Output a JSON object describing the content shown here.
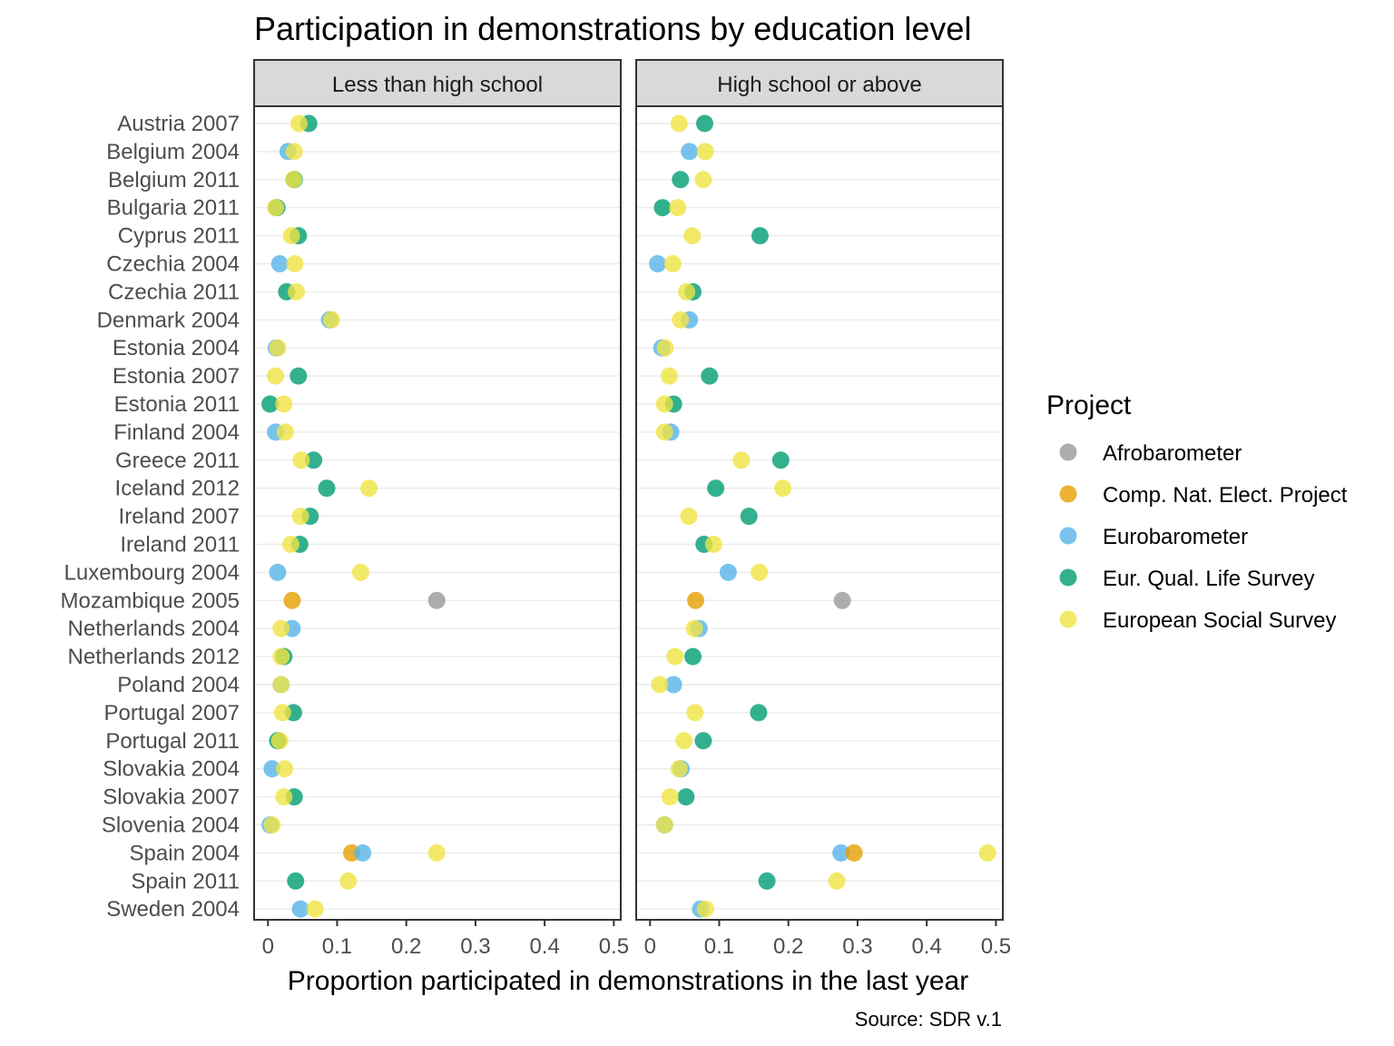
{
  "chart_data": {
    "type": "scatter",
    "title": "Participation in demonstrations by education level",
    "xlabel": "Proportion participated in demonstrations in the last year",
    "caption": "Source: SDR v.1",
    "xlim": [
      -0.02,
      0.51
    ],
    "x_ticks": [
      "0",
      "0.1",
      "0.2",
      "0.3",
      "0.4",
      "0.5"
    ],
    "x_tick_values": [
      0,
      0.1,
      0.2,
      0.3,
      0.4,
      0.5
    ],
    "grid": "horizontal",
    "legend_placement": "right",
    "legend": {
      "title": "Project",
      "entries": [
        {
          "key": "afro",
          "label": "Afrobarometer",
          "color": "#999999"
        },
        {
          "key": "cnep",
          "label": "Comp. Nat. Elect. Project",
          "color": "#E69F00"
        },
        {
          "key": "eb",
          "label": "Eurobarometer",
          "color": "#56B4E9"
        },
        {
          "key": "eqls",
          "label": "Eur. Qual. Life Survey",
          "color": "#009E73"
        },
        {
          "key": "ess",
          "label": "European Social Survey",
          "color": "#F0E442"
        }
      ]
    },
    "categories": [
      "Austria 2007",
      "Belgium 2004",
      "Belgium 2011",
      "Bulgaria 2011",
      "Cyprus 2011",
      "Czechia 2004",
      "Czechia 2011",
      "Denmark 2004",
      "Estonia 2004",
      "Estonia 2007",
      "Estonia 2011",
      "Finland 2004",
      "Greece 2011",
      "Iceland 2012",
      "Ireland 2007",
      "Ireland 2011",
      "Luxembourg 2004",
      "Mozambique 2005",
      "Netherlands 2004",
      "Netherlands 2012",
      "Poland 2004",
      "Portugal 2007",
      "Portugal 2011",
      "Slovakia 2004",
      "Slovakia 2007",
      "Slovenia 2004",
      "Spain 2004",
      "Spain 2011",
      "Sweden 2004"
    ],
    "panels": [
      {
        "label": "Less than high school",
        "points": [
          {
            "cat": "Austria 2007",
            "project": "eqls",
            "x": 0.059
          },
          {
            "cat": "Austria 2007",
            "project": "ess",
            "x": 0.045
          },
          {
            "cat": "Belgium 2004",
            "project": "eb",
            "x": 0.029
          },
          {
            "cat": "Belgium 2004",
            "project": "ess",
            "x": 0.038
          },
          {
            "cat": "Belgium 2011",
            "project": "eqls",
            "x": 0.038
          },
          {
            "cat": "Belgium 2011",
            "project": "ess",
            "x": 0.037
          },
          {
            "cat": "Bulgaria 2011",
            "project": "eqls",
            "x": 0.013
          },
          {
            "cat": "Bulgaria 2011",
            "project": "ess",
            "x": 0.011
          },
          {
            "cat": "Cyprus 2011",
            "project": "eqls",
            "x": 0.044
          },
          {
            "cat": "Cyprus 2011",
            "project": "ess",
            "x": 0.034
          },
          {
            "cat": "Czechia 2004",
            "project": "eb",
            "x": 0.017
          },
          {
            "cat": "Czechia 2004",
            "project": "ess",
            "x": 0.039
          },
          {
            "cat": "Czechia 2011",
            "project": "eqls",
            "x": 0.027
          },
          {
            "cat": "Czechia 2011",
            "project": "ess",
            "x": 0.041
          },
          {
            "cat": "Denmark 2004",
            "project": "eb",
            "x": 0.089
          },
          {
            "cat": "Denmark 2004",
            "project": "ess",
            "x": 0.092
          },
          {
            "cat": "Estonia 2004",
            "project": "eb",
            "x": 0.012
          },
          {
            "cat": "Estonia 2004",
            "project": "ess",
            "x": 0.014
          },
          {
            "cat": "Estonia 2007",
            "project": "eqls",
            "x": 0.044
          },
          {
            "cat": "Estonia 2007",
            "project": "ess",
            "x": 0.011
          },
          {
            "cat": "Estonia 2011",
            "project": "eqls",
            "x": 0.003
          },
          {
            "cat": "Estonia 2011",
            "project": "ess",
            "x": 0.023
          },
          {
            "cat": "Finland 2004",
            "project": "eb",
            "x": 0.011
          },
          {
            "cat": "Finland 2004",
            "project": "ess",
            "x": 0.025
          },
          {
            "cat": "Greece 2011",
            "project": "eqls",
            "x": 0.066
          },
          {
            "cat": "Greece 2011",
            "project": "ess",
            "x": 0.048
          },
          {
            "cat": "Iceland 2012",
            "project": "eqls",
            "x": 0.085
          },
          {
            "cat": "Iceland 2012",
            "project": "ess",
            "x": 0.146
          },
          {
            "cat": "Ireland 2007",
            "project": "eqls",
            "x": 0.061
          },
          {
            "cat": "Ireland 2007",
            "project": "ess",
            "x": 0.047
          },
          {
            "cat": "Ireland 2011",
            "project": "eqls",
            "x": 0.046
          },
          {
            "cat": "Ireland 2011",
            "project": "ess",
            "x": 0.033
          },
          {
            "cat": "Luxembourg 2004",
            "project": "eb",
            "x": 0.014
          },
          {
            "cat": "Luxembourg 2004",
            "project": "ess",
            "x": 0.134
          },
          {
            "cat": "Mozambique 2005",
            "project": "afro",
            "x": 0.244
          },
          {
            "cat": "Mozambique 2005",
            "project": "cnep",
            "x": 0.035
          },
          {
            "cat": "Netherlands 2004",
            "project": "eb",
            "x": 0.035
          },
          {
            "cat": "Netherlands 2004",
            "project": "ess",
            "x": 0.019
          },
          {
            "cat": "Netherlands 2012",
            "project": "eqls",
            "x": 0.023
          },
          {
            "cat": "Netherlands 2012",
            "project": "ess",
            "x": 0.019
          },
          {
            "cat": "Poland 2004",
            "project": "eb",
            "x": 0.019
          },
          {
            "cat": "Poland 2004",
            "project": "ess",
            "x": 0.019
          },
          {
            "cat": "Portugal 2007",
            "project": "eqls",
            "x": 0.037
          },
          {
            "cat": "Portugal 2007",
            "project": "ess",
            "x": 0.021
          },
          {
            "cat": "Portugal 2011",
            "project": "eqls",
            "x": 0.014
          },
          {
            "cat": "Portugal 2011",
            "project": "ess",
            "x": 0.017
          },
          {
            "cat": "Slovakia 2004",
            "project": "eb",
            "x": 0.006
          },
          {
            "cat": "Slovakia 2004",
            "project": "ess",
            "x": 0.024
          },
          {
            "cat": "Slovakia 2007",
            "project": "eqls",
            "x": 0.038
          },
          {
            "cat": "Slovakia 2007",
            "project": "ess",
            "x": 0.023
          },
          {
            "cat": "Slovenia 2004",
            "project": "eb",
            "x": 0.003
          },
          {
            "cat": "Slovenia 2004",
            "project": "ess",
            "x": 0.006
          },
          {
            "cat": "Spain 2004",
            "project": "cnep",
            "x": 0.121
          },
          {
            "cat": "Spain 2004",
            "project": "eb",
            "x": 0.137
          },
          {
            "cat": "Spain 2004",
            "project": "ess",
            "x": 0.244
          },
          {
            "cat": "Spain 2011",
            "project": "eqls",
            "x": 0.04
          },
          {
            "cat": "Spain 2011",
            "project": "ess",
            "x": 0.116
          },
          {
            "cat": "Sweden 2004",
            "project": "eb",
            "x": 0.047
          },
          {
            "cat": "Sweden 2004",
            "project": "ess",
            "x": 0.068
          }
        ]
      },
      {
        "label": "High school or above",
        "points": [
          {
            "cat": "Austria 2007",
            "project": "eqls",
            "x": 0.079
          },
          {
            "cat": "Austria 2007",
            "project": "ess",
            "x": 0.042
          },
          {
            "cat": "Belgium 2004",
            "project": "eb",
            "x": 0.057
          },
          {
            "cat": "Belgium 2004",
            "project": "ess",
            "x": 0.08
          },
          {
            "cat": "Belgium 2011",
            "project": "eqls",
            "x": 0.044
          },
          {
            "cat": "Belgium 2011",
            "project": "ess",
            "x": 0.077
          },
          {
            "cat": "Bulgaria 2011",
            "project": "eqls",
            "x": 0.018
          },
          {
            "cat": "Bulgaria 2011",
            "project": "ess",
            "x": 0.04
          },
          {
            "cat": "Cyprus 2011",
            "project": "eqls",
            "x": 0.159
          },
          {
            "cat": "Cyprus 2011",
            "project": "ess",
            "x": 0.061
          },
          {
            "cat": "Czechia 2004",
            "project": "eb",
            "x": 0.011
          },
          {
            "cat": "Czechia 2004",
            "project": "ess",
            "x": 0.033
          },
          {
            "cat": "Czechia 2011",
            "project": "eqls",
            "x": 0.062
          },
          {
            "cat": "Czechia 2011",
            "project": "ess",
            "x": 0.053
          },
          {
            "cat": "Denmark 2004",
            "project": "eb",
            "x": 0.057
          },
          {
            "cat": "Denmark 2004",
            "project": "ess",
            "x": 0.044
          },
          {
            "cat": "Estonia 2004",
            "project": "eb",
            "x": 0.017
          },
          {
            "cat": "Estonia 2004",
            "project": "ess",
            "x": 0.022
          },
          {
            "cat": "Estonia 2007",
            "project": "eqls",
            "x": 0.086
          },
          {
            "cat": "Estonia 2007",
            "project": "ess",
            "x": 0.028
          },
          {
            "cat": "Estonia 2011",
            "project": "eqls",
            "x": 0.034
          },
          {
            "cat": "Estonia 2011",
            "project": "ess",
            "x": 0.021
          },
          {
            "cat": "Finland 2004",
            "project": "eb",
            "x": 0.03
          },
          {
            "cat": "Finland 2004",
            "project": "ess",
            "x": 0.021
          },
          {
            "cat": "Greece 2011",
            "project": "eqls",
            "x": 0.189
          },
          {
            "cat": "Greece 2011",
            "project": "ess",
            "x": 0.132
          },
          {
            "cat": "Iceland 2012",
            "project": "eqls",
            "x": 0.095
          },
          {
            "cat": "Iceland 2012",
            "project": "ess",
            "x": 0.192
          },
          {
            "cat": "Ireland 2007",
            "project": "eqls",
            "x": 0.143
          },
          {
            "cat": "Ireland 2007",
            "project": "ess",
            "x": 0.056
          },
          {
            "cat": "Ireland 2011",
            "project": "eqls",
            "x": 0.078
          },
          {
            "cat": "Ireland 2011",
            "project": "ess",
            "x": 0.092
          },
          {
            "cat": "Luxembourg 2004",
            "project": "eb",
            "x": 0.113
          },
          {
            "cat": "Luxembourg 2004",
            "project": "ess",
            "x": 0.158
          },
          {
            "cat": "Mozambique 2005",
            "project": "afro",
            "x": 0.278
          },
          {
            "cat": "Mozambique 2005",
            "project": "cnep",
            "x": 0.066
          },
          {
            "cat": "Netherlands 2004",
            "project": "eb",
            "x": 0.071
          },
          {
            "cat": "Netherlands 2004",
            "project": "ess",
            "x": 0.064
          },
          {
            "cat": "Netherlands 2012",
            "project": "eqls",
            "x": 0.062
          },
          {
            "cat": "Netherlands 2012",
            "project": "ess",
            "x": 0.036
          },
          {
            "cat": "Poland 2004",
            "project": "eb",
            "x": 0.034
          },
          {
            "cat": "Poland 2004",
            "project": "ess",
            "x": 0.014
          },
          {
            "cat": "Portugal 2007",
            "project": "eqls",
            "x": 0.157
          },
          {
            "cat": "Portugal 2007",
            "project": "ess",
            "x": 0.065
          },
          {
            "cat": "Portugal 2011",
            "project": "eqls",
            "x": 0.077
          },
          {
            "cat": "Portugal 2011",
            "project": "ess",
            "x": 0.049
          },
          {
            "cat": "Slovakia 2004",
            "project": "eb",
            "x": 0.045
          },
          {
            "cat": "Slovakia 2004",
            "project": "ess",
            "x": 0.042
          },
          {
            "cat": "Slovakia 2007",
            "project": "eqls",
            "x": 0.052
          },
          {
            "cat": "Slovakia 2007",
            "project": "ess",
            "x": 0.029
          },
          {
            "cat": "Slovenia 2004",
            "project": "eb",
            "x": 0.021
          },
          {
            "cat": "Slovenia 2004",
            "project": "ess",
            "x": 0.021
          },
          {
            "cat": "Spain 2004",
            "project": "eb",
            "x": 0.276
          },
          {
            "cat": "Spain 2004",
            "project": "cnep",
            "x": 0.295
          },
          {
            "cat": "Spain 2004",
            "project": "ess",
            "x": 0.488
          },
          {
            "cat": "Spain 2011",
            "project": "eqls",
            "x": 0.169
          },
          {
            "cat": "Spain 2011",
            "project": "ess",
            "x": 0.27
          },
          {
            "cat": "Sweden 2004",
            "project": "eb",
            "x": 0.073
          },
          {
            "cat": "Sweden 2004",
            "project": "ess",
            "x": 0.08
          }
        ]
      }
    ]
  }
}
